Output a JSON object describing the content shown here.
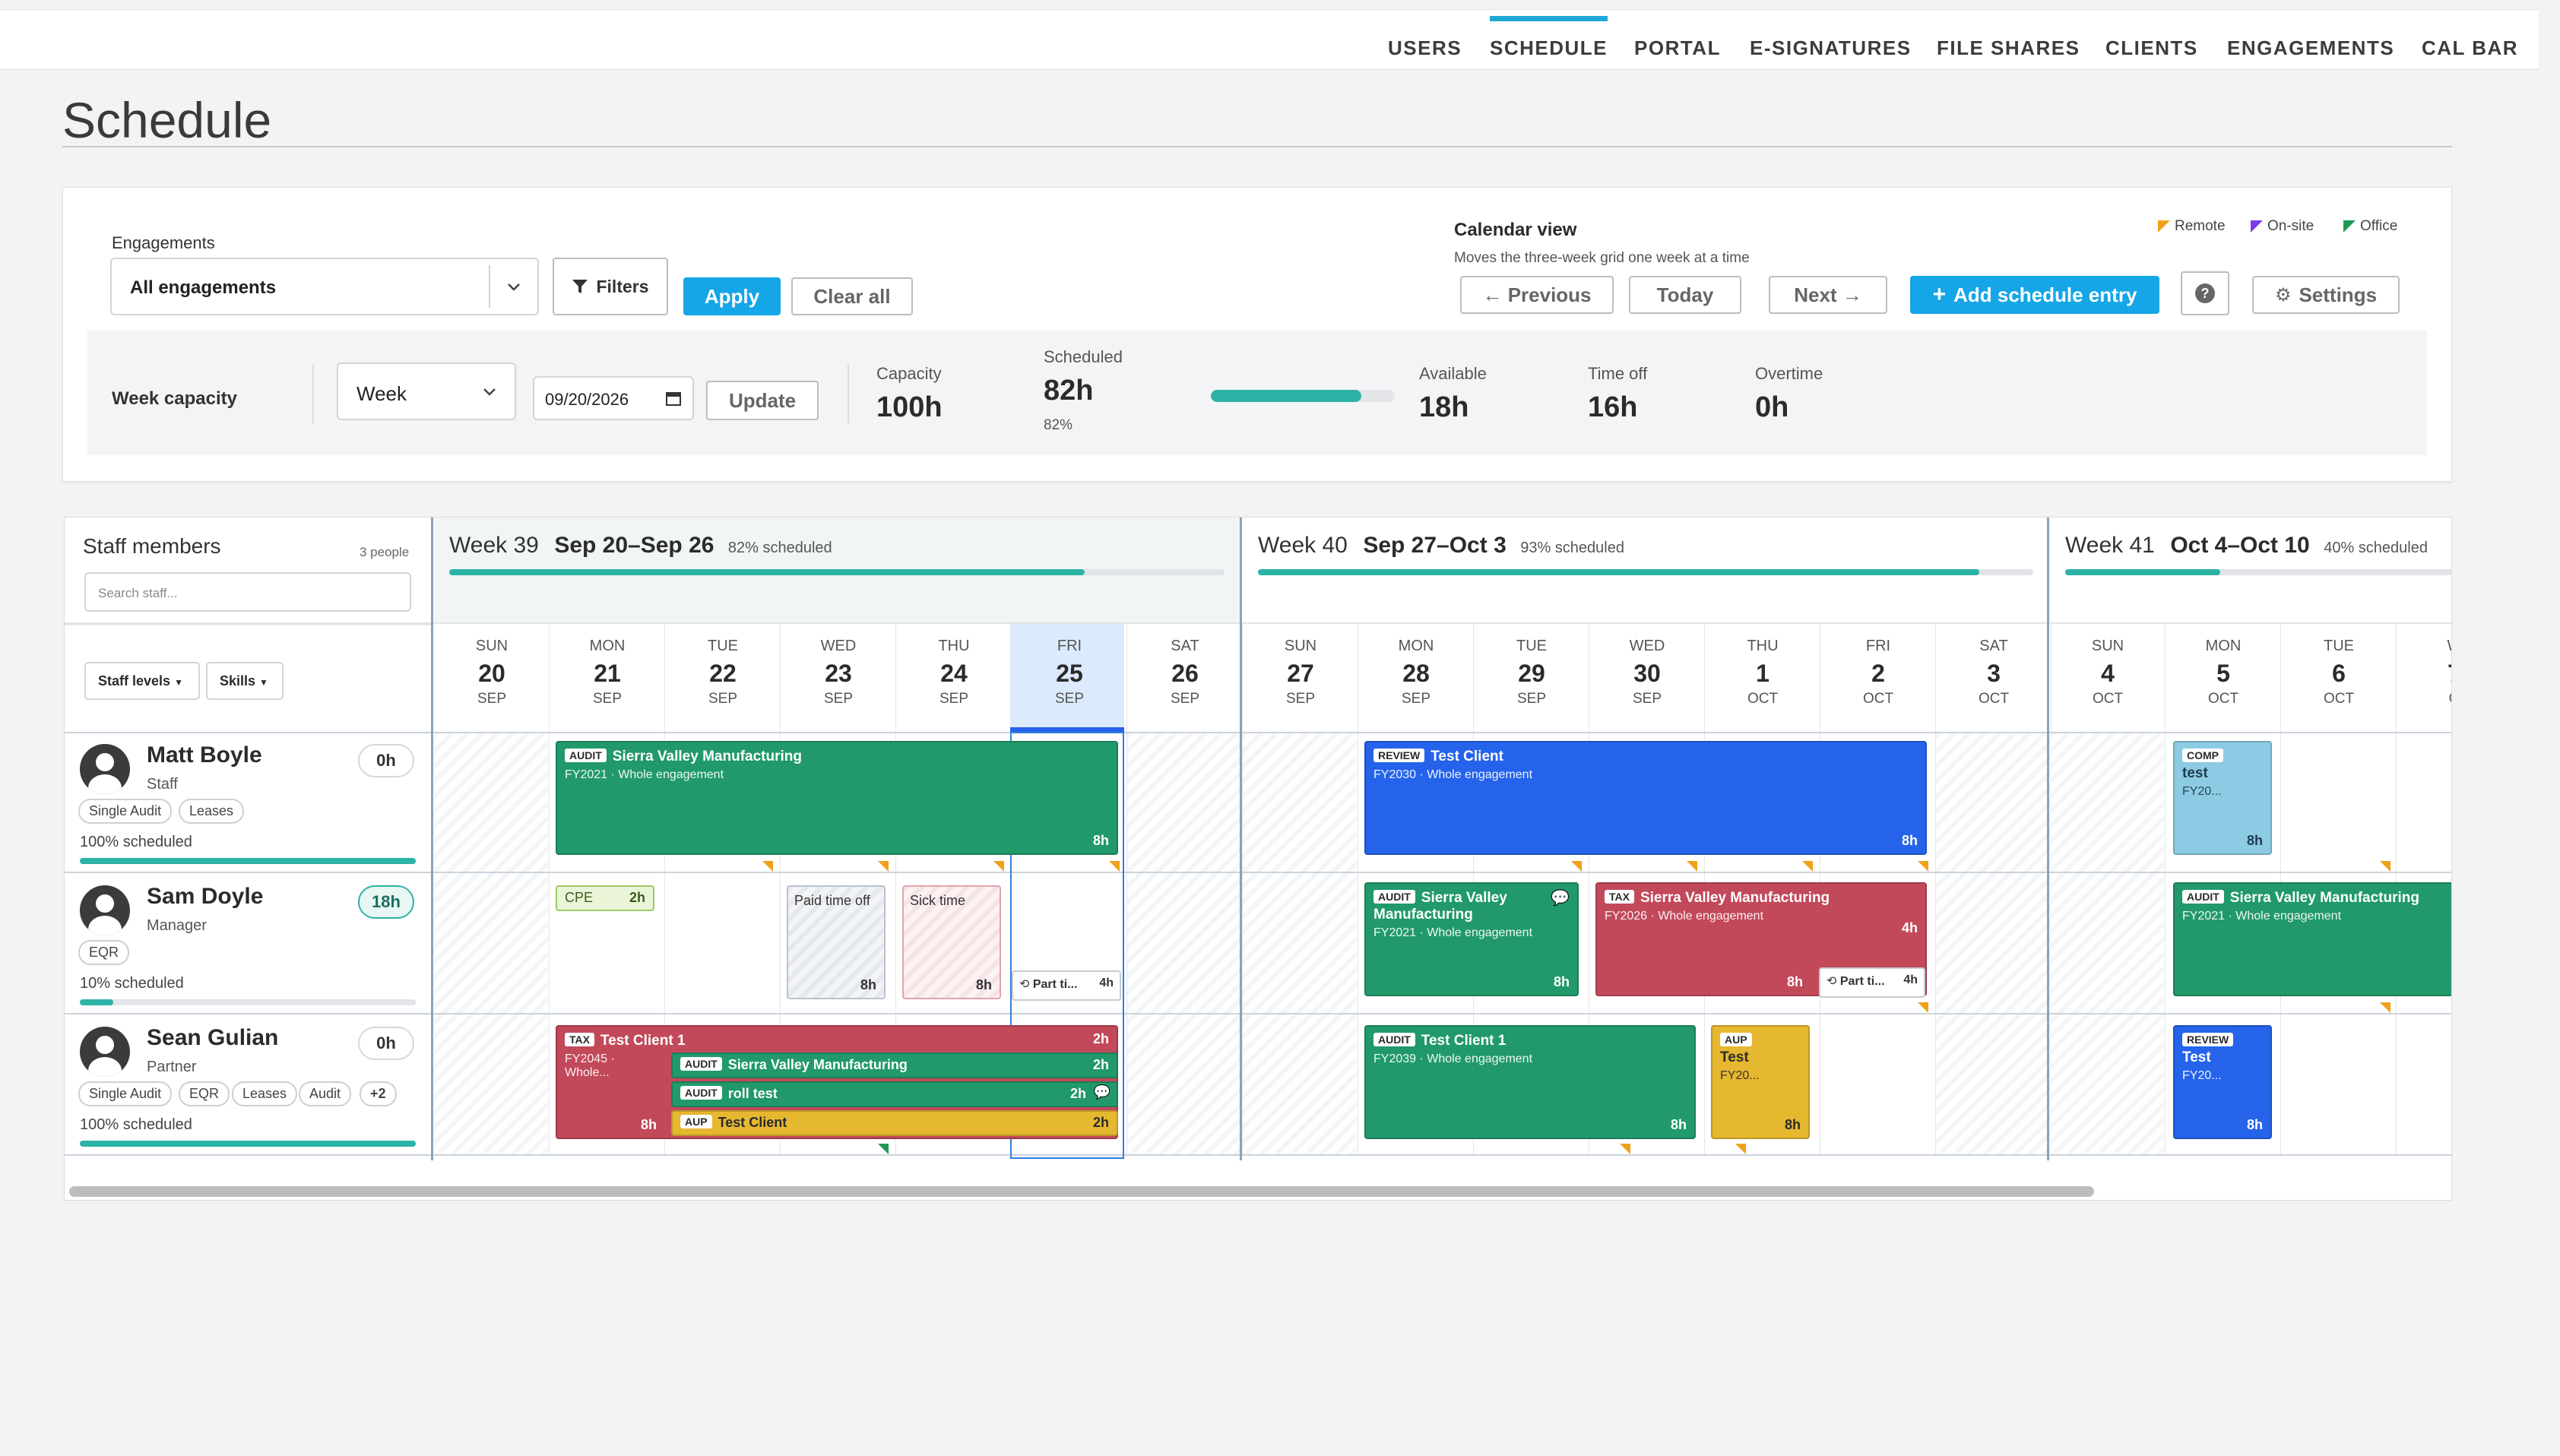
{
  "nav": {
    "items": [
      "USERS",
      "SCHEDULE",
      "PORTAL",
      "E-SIGNATURES",
      "FILE SHARES",
      "CLIENTS",
      "ENGAGEMENTS",
      "CAL BAR"
    ],
    "active": "SCHEDULE"
  },
  "page": {
    "title": "Schedule"
  },
  "filters": {
    "engagements_label": "Engagements",
    "engagements_value": "All engagements",
    "filters_button": "Filters",
    "apply_button": "Apply",
    "clear_button": "Clear all"
  },
  "calendar_view": {
    "title": "Calendar view",
    "subtitle": "Moves the three-week grid one week at a time",
    "previous": "← Previous",
    "today": "Today",
    "next": "Next →",
    "add_entry": "Add schedule entry",
    "help": "?",
    "settings": "Settings",
    "legend": [
      {
        "label": "Remote",
        "color": "#f0a11c"
      },
      {
        "label": "On-site",
        "color": "#7c3aed"
      },
      {
        "label": "Office",
        "color": "#1f9a56"
      }
    ]
  },
  "capacity": {
    "label": "Week capacity",
    "period": "Week",
    "date": "09/20/2026",
    "update_button": "Update",
    "capacity_label": "Capacity",
    "capacity_value": "100h",
    "scheduled_label": "Scheduled",
    "scheduled_value": "82h",
    "scheduled_pct": "82%",
    "scheduled_fraction": 0.82,
    "available_label": "Available",
    "available_value": "18h",
    "timeoff_label": "Time off",
    "timeoff_value": "16h",
    "overtime_label": "Overtime",
    "overtime_value": "0h"
  },
  "staff_panel": {
    "title": "Staff members",
    "count": "3 people",
    "search_placeholder": "Search staff...",
    "staff_levels": "Staff levels",
    "skills": "Skills"
  },
  "weeks": [
    {
      "num": "Week 39",
      "range": "Sep 20–Sep 26",
      "pct": "82% scheduled",
      "fraction": 0.82
    },
    {
      "num": "Week 40",
      "range": "Sep 27–Oct 3",
      "pct": "93% scheduled",
      "fraction": 0.93
    },
    {
      "num": "Week 41",
      "range": "Oct 4–Oct 10",
      "pct": "40% scheduled",
      "fraction": 0.4
    }
  ],
  "days": [
    {
      "dow": "SUN",
      "num": "20",
      "mon": "SEP"
    },
    {
      "dow": "MON",
      "num": "21",
      "mon": "SEP"
    },
    {
      "dow": "TUE",
      "num": "22",
      "mon": "SEP"
    },
    {
      "dow": "WED",
      "num": "23",
      "mon": "SEP"
    },
    {
      "dow": "THU",
      "num": "24",
      "mon": "SEP"
    },
    {
      "dow": "FRI",
      "num": "25",
      "mon": "SEP"
    },
    {
      "dow": "SAT",
      "num": "26",
      "mon": "SEP"
    },
    {
      "dow": "SUN",
      "num": "27",
      "mon": "SEP"
    },
    {
      "dow": "MON",
      "num": "28",
      "mon": "SEP"
    },
    {
      "dow": "TUE",
      "num": "29",
      "mon": "SEP"
    },
    {
      "dow": "WED",
      "num": "30",
      "mon": "SEP"
    },
    {
      "dow": "THU",
      "num": "1",
      "mon": "OCT"
    },
    {
      "dow": "FRI",
      "num": "2",
      "mon": "OCT"
    },
    {
      "dow": "SAT",
      "num": "3",
      "mon": "OCT"
    },
    {
      "dow": "SUN",
      "num": "4",
      "mon": "OCT"
    },
    {
      "dow": "MON",
      "num": "5",
      "mon": "OCT"
    },
    {
      "dow": "TUE",
      "num": "6",
      "mon": "OCT"
    },
    {
      "dow": "W",
      "num": "7",
      "mon": "O"
    }
  ],
  "staff": [
    {
      "name": "Matt Boyle",
      "role": "Staff",
      "hours": "0h",
      "tags": [
        "Single Audit",
        "Leases"
      ],
      "scheduled": "100% scheduled",
      "fraction": 1.0
    },
    {
      "name": "Sam Doyle",
      "role": "Manager",
      "hours": "18h",
      "tags": [
        "EQR"
      ],
      "scheduled": "10% scheduled",
      "fraction": 0.1
    },
    {
      "name": "Sean Gulian",
      "role": "Partner",
      "hours": "0h",
      "tags": [
        "Single Audit",
        "EQR",
        "Leases",
        "Audit",
        "+2"
      ],
      "scheduled": "100% scheduled",
      "fraction": 1.0
    }
  ],
  "entries": [
    {
      "tag": "AUDIT",
      "title": "Sierra Valley Manufacturing",
      "sub": "FY2021 · Whole engagement",
      "hours": "8h"
    },
    {
      "tag": "REVIEW",
      "title": "Test Client",
      "sub": "FY2030 · Whole engagement",
      "hours": "8h"
    },
    {
      "tag": "COMP",
      "title": "test",
      "sub": "FY20...",
      "hours": "8h"
    },
    {
      "tag": "",
      "title": "CPE",
      "sub": "",
      "hours": "2h"
    },
    {
      "tag": "",
      "title": "Paid time off",
      "sub": "",
      "hours": "8h"
    },
    {
      "tag": "",
      "title": "Sick time",
      "sub": "",
      "hours": "8h"
    },
    {
      "tag": "",
      "title": "Part ti...",
      "sub": "",
      "hours": "4h"
    },
    {
      "tag": "AUDIT",
      "title": "Sierra Valley Manufacturing",
      "sub": "FY2021 · Whole engagement",
      "hours": "8h"
    },
    {
      "tag": "TAX",
      "title": "Sierra Valley Manufacturing",
      "sub": "FY2026 · Whole engagement",
      "hours": "8h",
      "hours2": "4h"
    },
    {
      "tag": "",
      "title": "Part ti...",
      "sub": "",
      "hours": "4h"
    },
    {
      "tag": "AUDIT",
      "title": "Sierra Valley Manufacturing",
      "sub": "FY2021 · Whole engagement",
      "hours": ""
    },
    {
      "tag": "TAX",
      "title": "Test Client 1",
      "sub": "FY2045 · Whole...",
      "hours": "8h",
      "hours2": "2h"
    },
    {
      "tag": "AUDIT",
      "title": "Sierra Valley Manufacturing",
      "sub": "",
      "hours": "2h"
    },
    {
      "tag": "AUDIT",
      "title": "roll test",
      "sub": "",
      "hours": "2h"
    },
    {
      "tag": "AUP",
      "title": "Test Client",
      "sub": "",
      "hours": "2h"
    },
    {
      "tag": "AUDIT",
      "title": "Test Client 1",
      "sub": "FY2039 · Whole engagement",
      "hours": "8h"
    },
    {
      "tag": "AUP",
      "title": "Test",
      "sub": "FY20...",
      "hours": "8h"
    },
    {
      "tag": "REVIEW",
      "title": "Test",
      "sub": "FY20...",
      "hours": "8h"
    }
  ]
}
